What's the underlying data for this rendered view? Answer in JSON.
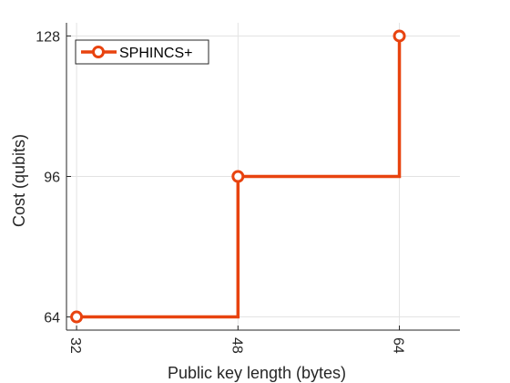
{
  "chart_data": {
    "type": "line",
    "step": "post",
    "x": [
      32,
      48,
      64
    ],
    "series": [
      {
        "name": "SPHINCS+",
        "values": [
          64,
          96,
          128
        ],
        "color": "#e8430f",
        "marker": "circle"
      }
    ],
    "xticks": [
      32,
      48,
      64
    ],
    "xtick_labels": [
      "32",
      "48",
      "64"
    ],
    "yticks": [
      64,
      96,
      128
    ],
    "ytick_labels": [
      "64",
      "96",
      "128"
    ],
    "xlim": [
      31,
      70
    ],
    "ylim": [
      61,
      131
    ],
    "xlabel": "Public key length (bytes)",
    "ylabel": "Cost (qubits)",
    "grid": true,
    "legend_position": "top-left"
  }
}
